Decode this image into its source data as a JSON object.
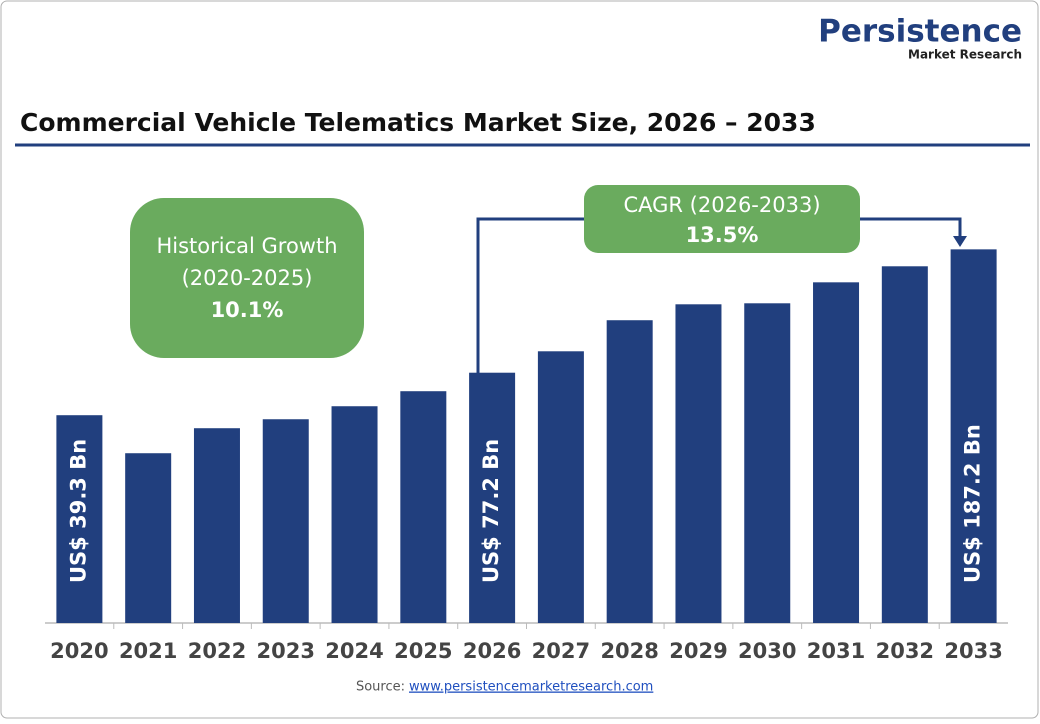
{
  "brand": {
    "name": "Persistence",
    "tagline": "Market Research"
  },
  "chart_data": {
    "type": "bar",
    "title": "Commercial Vehicle Telematics Market Size, 2026 – 2033",
    "categories": [
      "2020",
      "2021",
      "2022",
      "2023",
      "2024",
      "2025",
      "2026",
      "2027",
      "2028",
      "2029",
      "2030",
      "2031",
      "2032",
      "2033"
    ],
    "values": [
      39.3,
      5.4,
      27.7,
      35.7,
      47.3,
      60.7,
      77.2,
      96.3,
      124.0,
      138.2,
      139.1,
      157.8,
      172.1,
      187.2
    ],
    "value_labels": [
      "US$ 39.3 Bn",
      null,
      null,
      null,
      null,
      null,
      "US$ 77.2 Bn",
      null,
      null,
      null,
      null,
      null,
      null,
      "US$ 187.2 Bn"
    ],
    "color": "#213f7e",
    "ylim": [
      -146,
      200
    ],
    "annotations": [
      {
        "lines": [
          "Historical Growth",
          "(2020-2025)",
          "10.1%"
        ]
      },
      {
        "lines": [
          "CAGR (2026-2033)",
          "13.5%"
        ]
      }
    ],
    "source": {
      "label": "Source:",
      "link": "www.persistencemarketresearch.com"
    }
  }
}
